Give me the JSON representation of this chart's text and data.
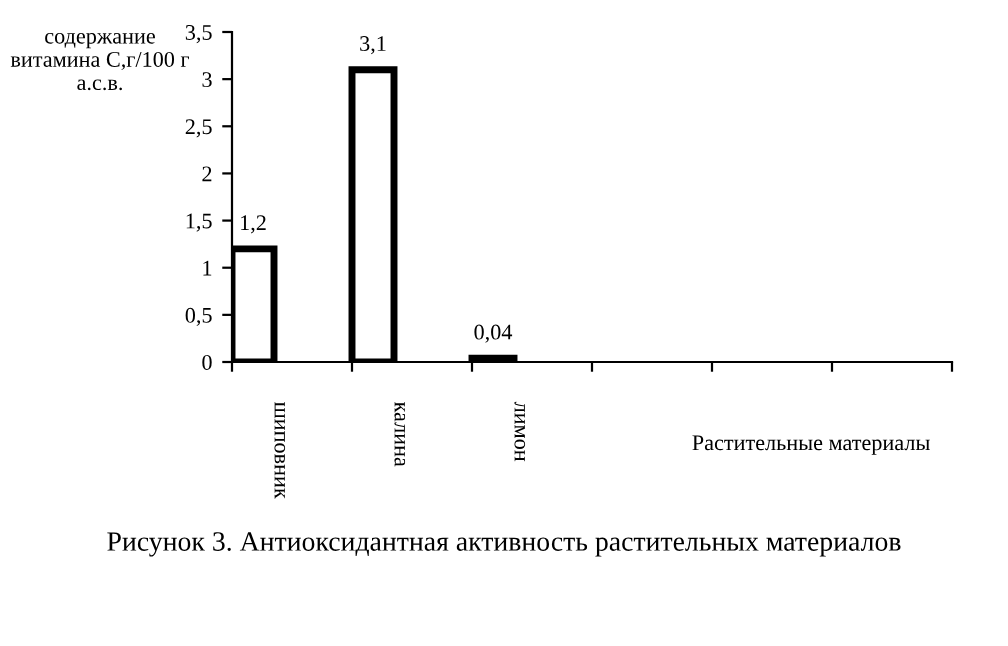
{
  "chart_data": {
    "type": "bar",
    "title": "Рисунок 3. Антиоксидантная активность растительных материалов",
    "xlabel": "Растительные материалы",
    "ylabel": "содержание витамина С,г/100 г а.с.в.",
    "categories": [
      "шиповник",
      "калина",
      "лимон",
      null,
      null,
      null
    ],
    "values": [
      1.2,
      3.1,
      0.04,
      null,
      null,
      null
    ],
    "value_labels": [
      "1,2",
      "3,1",
      "0,04",
      null,
      null,
      null
    ],
    "color": "#ffffff",
    "ylim": [
      0,
      3.5
    ],
    "yticks": [
      0,
      {
        "value": 0.5,
        "label": "0,5"
      },
      1,
      {
        "value": 1.5,
        "label": "1,5"
      },
      2,
      {
        "value": 2.5,
        "label": "2,5"
      },
      3,
      {
        "value": 3.5,
        "label": "3,5"
      }
    ],
    "grid": false,
    "legend": false
  }
}
